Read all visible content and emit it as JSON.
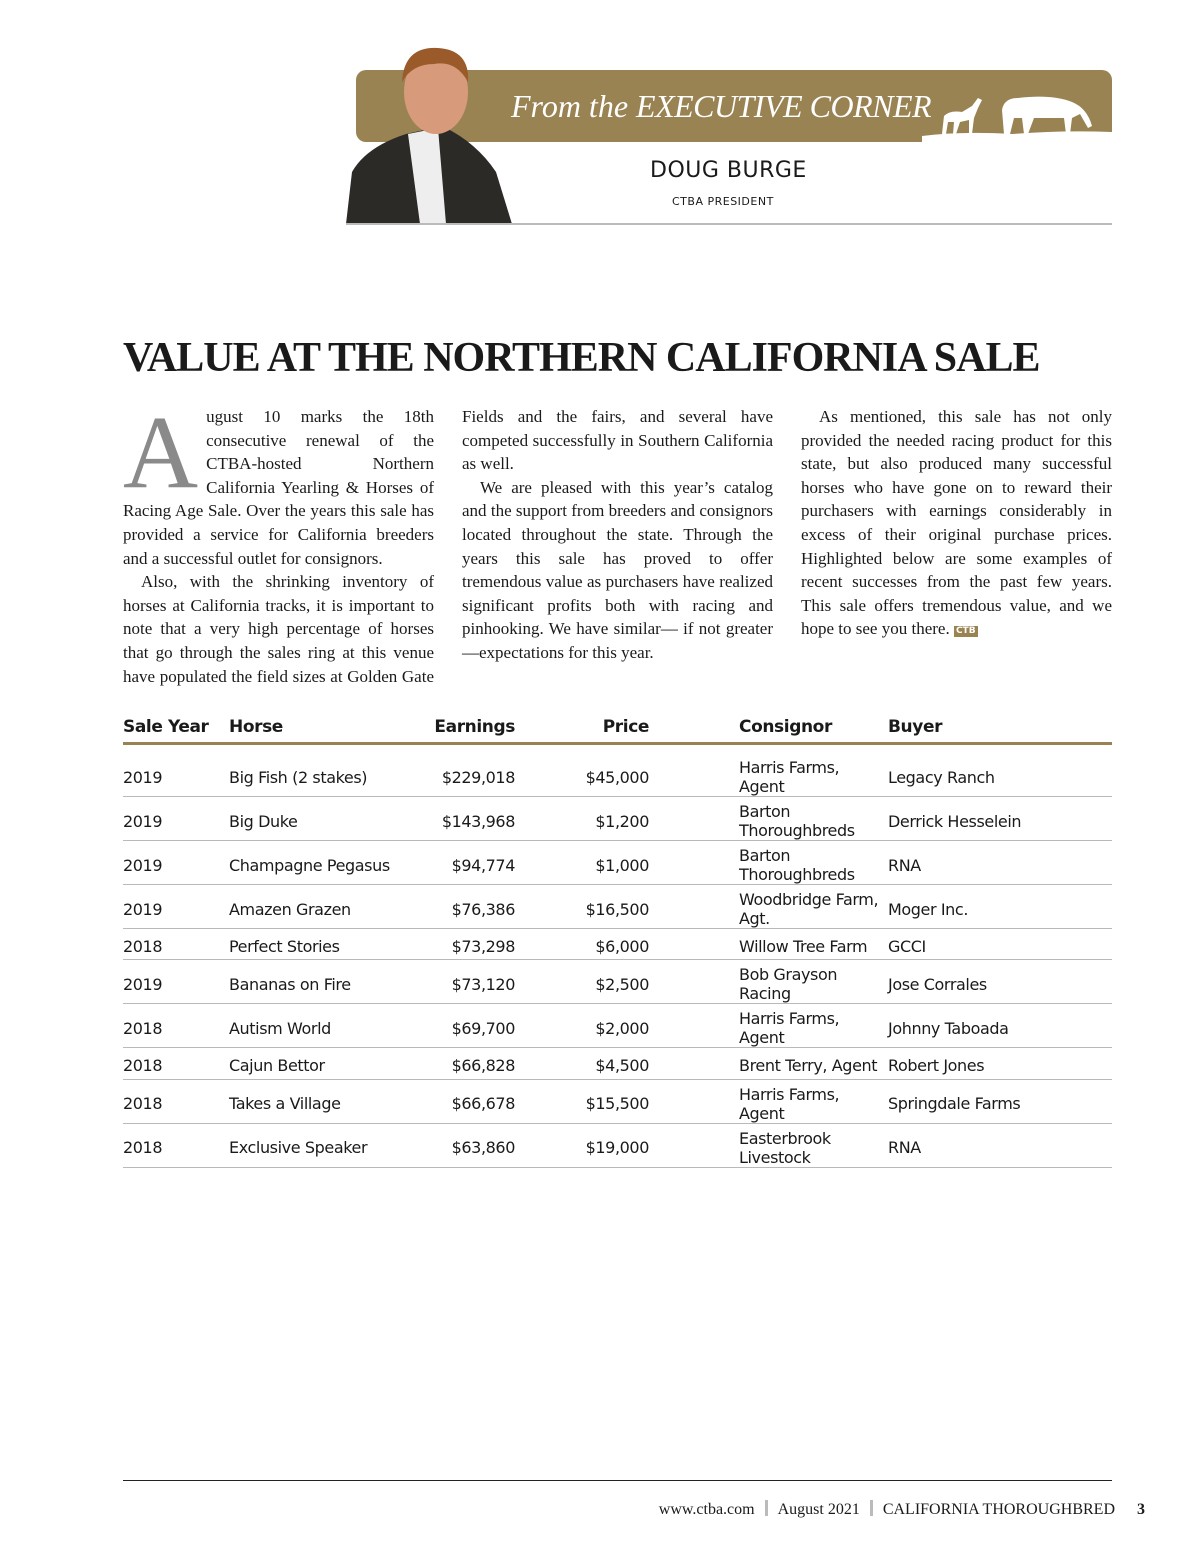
{
  "header": {
    "banner_prefix": "From the",
    "banner_title": "EXECUTIVE CORNER",
    "name": "DOUG BURGE",
    "role": "CTBA PRESIDENT",
    "brand_color": "#9a8352"
  },
  "article": {
    "title": "VALUE AT THE NORTHERN CALIFORNIA SALE",
    "drop_cap": "A",
    "paragraphs": [
      "ugust 10 marks the 18th consecutive renewal of the CTBA-hosted Northern California Yearling & Horses of Racing Age Sale. Over the years this sale has provided a service for California breeders and a successful outlet for consignors.",
      "Also, with the shrinking inventory of horses at California tracks, it is important to note that a very high percentage of horses that go through the sales ring at this venue have populated the field sizes at Golden Gate Fields and the fairs, and several have competed successfully in Southern California as well.",
      "We are pleased with this year’s catalog and the support from breeders and consignors located throughout the state. Through the years this sale has proved to offer tremendous value as purchasers have realized significant profits both with racing and pinhooking. We have similar— if not greater—expectations for this year.",
      "As mentioned, this sale has not only provided the needed racing product for this state, but also produced many successful horses who have gone on to reward their purchasers with earnings considerably in excess of their original purchase prices. Highlighted below are some examples of recent successes from the past few years. This sale offers tremendous value, and we hope to see you there."
    ],
    "end_mark": "CTB"
  },
  "table": {
    "headers": [
      "Sale Year",
      "Horse",
      "Earnings",
      "Price",
      "Consignor",
      "Buyer"
    ],
    "rows": [
      [
        "2019",
        "Big Fish (2 stakes)",
        "$229,018",
        "$45,000",
        "Harris Farms, Agent",
        "Legacy Ranch"
      ],
      [
        "2019",
        "Big Duke",
        "$143,968",
        "$1,200",
        "Barton Thoroughbreds",
        "Derrick Hesselein"
      ],
      [
        "2019",
        "Champagne Pegasus",
        "$94,774",
        "$1,000",
        "Barton Thoroughbreds",
        "RNA"
      ],
      [
        "2019",
        "Amazen Grazen",
        "$76,386",
        "$16,500",
        "Woodbridge Farm, Agt.",
        "Moger Inc."
      ],
      [
        "2018",
        "Perfect Stories",
        "$73,298",
        "$6,000",
        "Willow Tree Farm",
        "GCCI"
      ],
      [
        "2019",
        "Bananas on Fire",
        "$73,120",
        "$2,500",
        "Bob Grayson Racing",
        "Jose Corrales"
      ],
      [
        "2018",
        "Autism World",
        "$69,700",
        "$2,000",
        "Harris Farms, Agent",
        "Johnny Taboada"
      ],
      [
        "2018",
        "Cajun Bettor",
        "$66,828",
        "$4,500",
        "Brent Terry, Agent",
        "Robert Jones"
      ],
      [
        "2018",
        "Takes a Village",
        "$66,678",
        "$15,500",
        "Harris Farms, Agent",
        "Springdale Farms"
      ],
      [
        "2018",
        "Exclusive Speaker",
        "$63,860",
        "$19,000",
        "Easterbrook Livestock",
        "RNA"
      ]
    ]
  },
  "footer": {
    "website": "www.ctba.com",
    "issue": "August 2021",
    "publication": "CALIFORNIA THOROUGHBRED",
    "page": "3"
  }
}
